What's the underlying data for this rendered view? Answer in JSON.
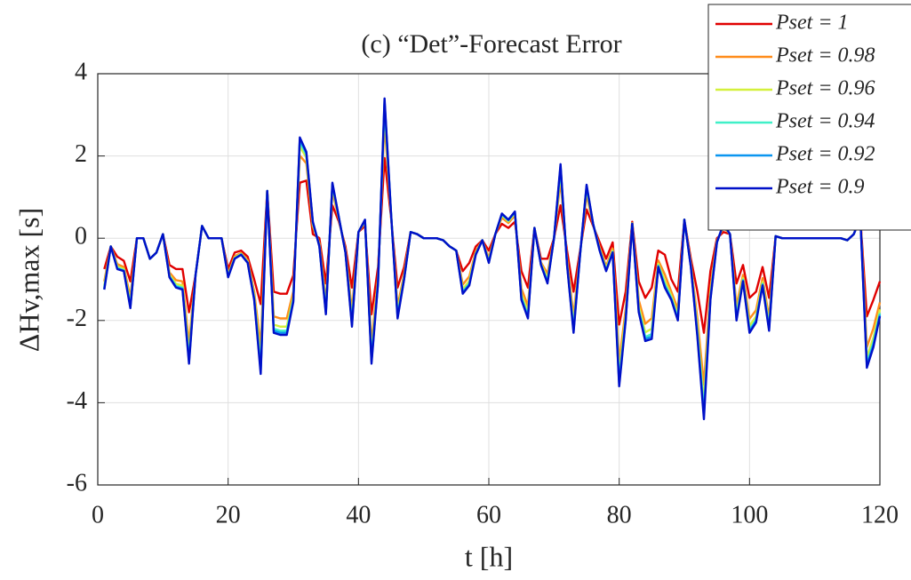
{
  "chart_data": {
    "type": "line",
    "title": "(c) “Det”-Forecast Error",
    "xlabel": "t [h]",
    "ylabel": "ΔHv,max [s]",
    "x": [
      1,
      2,
      3,
      4,
      5,
      6,
      7,
      8,
      9,
      10,
      11,
      12,
      13,
      14,
      15,
      16,
      17,
      18,
      19,
      20,
      21,
      22,
      23,
      24,
      25,
      26,
      27,
      28,
      29,
      30,
      31,
      32,
      33,
      34,
      35,
      36,
      37,
      38,
      39,
      40,
      41,
      42,
      43,
      44,
      45,
      46,
      47,
      48,
      49,
      50,
      51,
      52,
      53,
      54,
      55,
      56,
      57,
      58,
      59,
      60,
      61,
      62,
      63,
      64,
      65,
      66,
      67,
      68,
      69,
      70,
      71,
      72,
      73,
      74,
      75,
      76,
      77,
      78,
      79,
      80,
      81,
      82,
      83,
      84,
      85,
      86,
      87,
      88,
      89,
      90,
      91,
      92,
      93,
      94,
      95,
      96,
      97,
      98,
      99,
      100,
      101,
      102,
      103,
      104,
      105,
      106,
      107,
      108,
      109,
      110,
      111,
      112,
      113,
      114,
      115,
      116,
      117,
      118,
      119,
      120
    ],
    "xlim": [
      0,
      120
    ],
    "xticks": [
      0,
      20,
      40,
      60,
      80,
      100,
      120
    ],
    "ylim": [
      -6,
      4
    ],
    "yticks": [
      -6,
      -4,
      -2,
      0,
      2,
      4
    ],
    "grid": true,
    "legend": "upper right",
    "series": [
      {
        "name": "Pset = 1",
        "color": "#e00000",
        "values": [
          -0.75,
          -0.2,
          -0.45,
          -0.55,
          -1.05,
          0,
          0,
          -0.5,
          -0.35,
          0.1,
          -0.65,
          -0.75,
          -0.75,
          -1.8,
          -0.9,
          0.3,
          0,
          0,
          0,
          -0.75,
          -0.35,
          -0.3,
          -0.45,
          -1.0,
          -1.6,
          1.15,
          -1.3,
          -1.35,
          -1.35,
          -0.9,
          1.35,
          1.4,
          0.1,
          0,
          -1.1,
          0.8,
          0.4,
          -0.2,
          -1.2,
          0.15,
          0.3,
          -1.85,
          -0.7,
          1.95,
          0.5,
          -1.2,
          -0.7,
          0.15,
          0.1,
          0,
          0,
          0,
          -0.05,
          -0.2,
          -0.3,
          -0.8,
          -0.6,
          -0.2,
          -0.05,
          -0.3,
          0.1,
          0.35,
          0.25,
          0.4,
          -0.8,
          -1.2,
          0.25,
          -0.5,
          -0.5,
          0,
          0.8,
          -0.3,
          -1.3,
          -0.3,
          0.7,
          0.3,
          -0.1,
          -0.5,
          -0.1,
          -2.1,
          -1.3,
          0.4,
          -1.05,
          -1.45,
          -1.2,
          -0.3,
          -0.4,
          -1.0,
          -1.3,
          0.45,
          -0.5,
          -1.3,
          -2.3,
          -0.8,
          0,
          0.15,
          0.1,
          -1.1,
          -0.65,
          -1.45,
          -1.3,
          -0.7,
          -1.45,
          0.05,
          0,
          0,
          0,
          0,
          0,
          0,
          0,
          0,
          0,
          0,
          -0.05,
          0.1,
          0.5,
          -1.9,
          -1.5,
          -1.05
        ]
      },
      {
        "name": "Pset = 0.98",
        "color": "#ff8c1a",
        "values": [
          -1.05,
          -0.2,
          -0.63,
          -0.7,
          -1.44,
          0,
          0,
          -0.5,
          -0.35,
          0.1,
          -0.83,
          -1.02,
          -1.05,
          -2.55,
          -0.9,
          0.3,
          0,
          0,
          0,
          -0.87,
          -0.44,
          -0.36,
          -0.54,
          -1.3,
          -2.62,
          1.15,
          -1.9,
          -1.95,
          -1.95,
          -1.29,
          2.01,
          1.82,
          0.28,
          -0.12,
          -1.55,
          1.13,
          0.46,
          -0.29,
          -1.77,
          0.15,
          0.39,
          -2.57,
          -0.94,
          2.82,
          0.56,
          -1.65,
          -0.88,
          0.15,
          0.1,
          0,
          0,
          0,
          -0.05,
          -0.2,
          -0.3,
          -1.13,
          -0.93,
          -0.32,
          -0.05,
          -0.48,
          0.1,
          0.5,
          0.37,
          0.55,
          -1.22,
          -1.65,
          0.25,
          -0.59,
          -0.86,
          0,
          1.4,
          -0.51,
          -1.9,
          -0.36,
          1.06,
          0.33,
          -0.22,
          -0.68,
          -0.25,
          -3.0,
          -1.72,
          0.37,
          -1.5,
          -2.08,
          -1.95,
          -0.54,
          -0.88,
          -1.3,
          -1.72,
          0.45,
          -0.62,
          -1.96,
          -3.56,
          -1.22,
          -0.06,
          0.27,
          0.1,
          -1.64,
          -0.89,
          -1.96,
          -1.75,
          -0.97,
          -1.93,
          0.05,
          0,
          0,
          0,
          0,
          0,
          0,
          0,
          0,
          0,
          0,
          -0.05,
          0.1,
          0.5,
          -2.65,
          -2.19,
          -1.56
        ]
      },
      {
        "name": "Pset = 0.96",
        "color": "#d4f03c",
        "values": [
          -1.15,
          -0.2,
          -0.69,
          -0.75,
          -1.57,
          0,
          0,
          -0.5,
          -0.35,
          0.1,
          -0.89,
          -1.11,
          -1.15,
          -2.8,
          -0.9,
          0.3,
          0,
          0,
          0,
          -0.91,
          -0.47,
          -0.38,
          -0.57,
          -1.4,
          -2.96,
          1.15,
          -2.1,
          -2.15,
          -2.15,
          -1.42,
          2.23,
          1.96,
          0.34,
          -0.16,
          -1.7,
          1.24,
          0.48,
          -0.32,
          -1.96,
          0.15,
          0.42,
          -2.81,
          -1.02,
          3.11,
          0.58,
          -1.8,
          -0.94,
          0.15,
          0.1,
          0,
          0,
          0,
          -0.05,
          -0.2,
          -0.3,
          -1.24,
          -1.04,
          -0.36,
          -0.05,
          -0.54,
          0.1,
          0.55,
          0.41,
          0.6,
          -1.36,
          -1.8,
          0.25,
          -0.62,
          -0.98,
          0,
          1.6,
          -0.58,
          -2.1,
          -0.38,
          1.18,
          0.34,
          -0.26,
          -0.74,
          -0.3,
          -3.3,
          -1.86,
          0.36,
          -1.65,
          -2.29,
          -2.2,
          -0.62,
          -1.04,
          -1.4,
          -1.86,
          0.45,
          -0.66,
          -2.18,
          -3.98,
          -1.36,
          -0.08,
          0.31,
          0.1,
          -1.82,
          -0.97,
          -2.13,
          -1.9,
          -1.06,
          -2.09,
          0.05,
          0,
          0,
          0,
          0,
          0,
          0,
          0,
          0,
          0,
          0,
          -0.05,
          0.1,
          0.5,
          -2.9,
          -2.42,
          -1.73
        ]
      },
      {
        "name": "Pset = 0.94",
        "color": "#40f0c8",
        "values": [
          -1.2,
          -0.2,
          -0.72,
          -0.78,
          -1.64,
          0,
          0,
          -0.5,
          -0.35,
          0.1,
          -0.92,
          -1.16,
          -1.2,
          -2.93,
          -0.9,
          0.3,
          0,
          0,
          0,
          -0.93,
          -0.49,
          -0.39,
          -0.59,
          -1.45,
          -3.13,
          1.15,
          -2.2,
          -2.25,
          -2.25,
          -1.49,
          2.34,
          2.03,
          0.37,
          -0.18,
          -1.78,
          1.3,
          0.49,
          -0.34,
          -2.06,
          0.15,
          0.44,
          -2.93,
          -1.06,
          3.26,
          0.59,
          -1.88,
          -0.97,
          0.15,
          0.1,
          0,
          0,
          0,
          -0.05,
          -0.2,
          -0.3,
          -1.3,
          -1.1,
          -0.38,
          -0.05,
          -0.57,
          0.1,
          0.58,
          0.43,
          0.63,
          -1.43,
          -1.88,
          0.25,
          -0.64,
          -1.04,
          0,
          1.7,
          -0.62,
          -2.2,
          -0.39,
          1.24,
          0.35,
          -0.28,
          -0.77,
          -0.33,
          -3.45,
          -1.93,
          0.36,
          -1.73,
          -2.4,
          -2.33,
          -0.66,
          -1.12,
          -1.45,
          -1.93,
          0.45,
          -0.68,
          -2.29,
          -4.19,
          -1.43,
          -0.09,
          0.33,
          0.1,
          -1.91,
          -1.01,
          -2.22,
          -1.98,
          -1.11,
          -2.17,
          0.05,
          0,
          0,
          0,
          0,
          0,
          0,
          0,
          0,
          0,
          0,
          -0.05,
          0.1,
          0.5,
          -3.03,
          -2.54,
          -1.82
        ]
      },
      {
        "name": "Pset = 0.92",
        "color": "#0a96f0",
        "values": [
          -1.23,
          -0.2,
          -0.74,
          -0.79,
          -1.67,
          0,
          0,
          -0.5,
          -0.35,
          0.1,
          -0.94,
          -1.18,
          -1.23,
          -2.99,
          -0.9,
          0.3,
          0,
          0,
          0,
          -0.94,
          -0.49,
          -0.4,
          -0.59,
          -1.48,
          -3.22,
          1.15,
          -2.25,
          -2.3,
          -2.3,
          -1.52,
          2.4,
          2.07,
          0.39,
          -0.19,
          -1.81,
          1.32,
          0.5,
          -0.34,
          -2.1,
          0.15,
          0.44,
          -2.99,
          -1.08,
          3.33,
          0.6,
          -1.91,
          -0.99,
          0.15,
          0.1,
          0,
          0,
          0,
          -0.05,
          -0.2,
          -0.3,
          -1.32,
          -1.12,
          -0.39,
          -0.05,
          -0.59,
          0.1,
          0.59,
          0.44,
          0.64,
          -1.47,
          -1.91,
          0.25,
          -0.64,
          -1.07,
          0,
          1.75,
          -0.63,
          -2.25,
          -0.4,
          1.27,
          0.35,
          -0.29,
          -0.79,
          -0.34,
          -3.53,
          -1.97,
          0.35,
          -1.76,
          -2.45,
          -2.39,
          -0.68,
          -1.16,
          -1.48,
          -1.97,
          0.45,
          -0.69,
          -2.35,
          -4.3,
          -1.47,
          -0.1,
          0.34,
          0.1,
          -1.96,
          -1.03,
          -2.26,
          -2.01,
          -1.13,
          -2.21,
          0.05,
          0,
          0,
          0,
          0,
          0,
          0,
          0,
          0,
          0,
          0,
          -0.05,
          0.1,
          0.5,
          -3.09,
          -2.59,
          -1.86
        ]
      },
      {
        "name": "Pset = 0.9",
        "color": "#0010c8",
        "values": [
          -1.25,
          -0.2,
          -0.75,
          -0.8,
          -1.7,
          0,
          0,
          -0.5,
          -0.35,
          0.1,
          -0.95,
          -1.2,
          -1.25,
          -3.05,
          -0.9,
          0.3,
          0,
          0,
          0,
          -0.95,
          -0.5,
          -0.4,
          -0.6,
          -1.5,
          -3.3,
          1.15,
          -2.3,
          -2.35,
          -2.35,
          -1.55,
          2.45,
          2.1,
          0.4,
          -0.2,
          -1.85,
          1.35,
          0.5,
          -0.35,
          -2.15,
          0.15,
          0.45,
          -3.05,
          -1.1,
          3.4,
          0.6,
          -1.95,
          -1.0,
          0.15,
          0.1,
          0,
          0,
          0,
          -0.05,
          -0.2,
          -0.3,
          -1.35,
          -1.15,
          -0.4,
          -0.05,
          -0.6,
          0.1,
          0.6,
          0.45,
          0.65,
          -1.5,
          -1.95,
          0.25,
          -0.65,
          -1.1,
          0,
          1.8,
          -0.65,
          -2.3,
          -0.4,
          1.3,
          0.35,
          -0.3,
          -0.8,
          -0.35,
          -3.6,
          -2.0,
          0.35,
          -1.8,
          -2.5,
          -2.45,
          -0.7,
          -1.2,
          -1.5,
          -2.0,
          0.45,
          -0.7,
          -2.4,
          -4.4,
          -1.5,
          -0.1,
          0.35,
          0.1,
          -2.0,
          -1.05,
          -2.3,
          -2.05,
          -1.15,
          -2.25,
          0.05,
          0,
          0,
          0,
          0,
          0,
          0,
          0,
          0,
          0,
          0,
          -0.05,
          0.1,
          0.5,
          -3.15,
          -2.65,
          -1.9
        ]
      }
    ]
  }
}
